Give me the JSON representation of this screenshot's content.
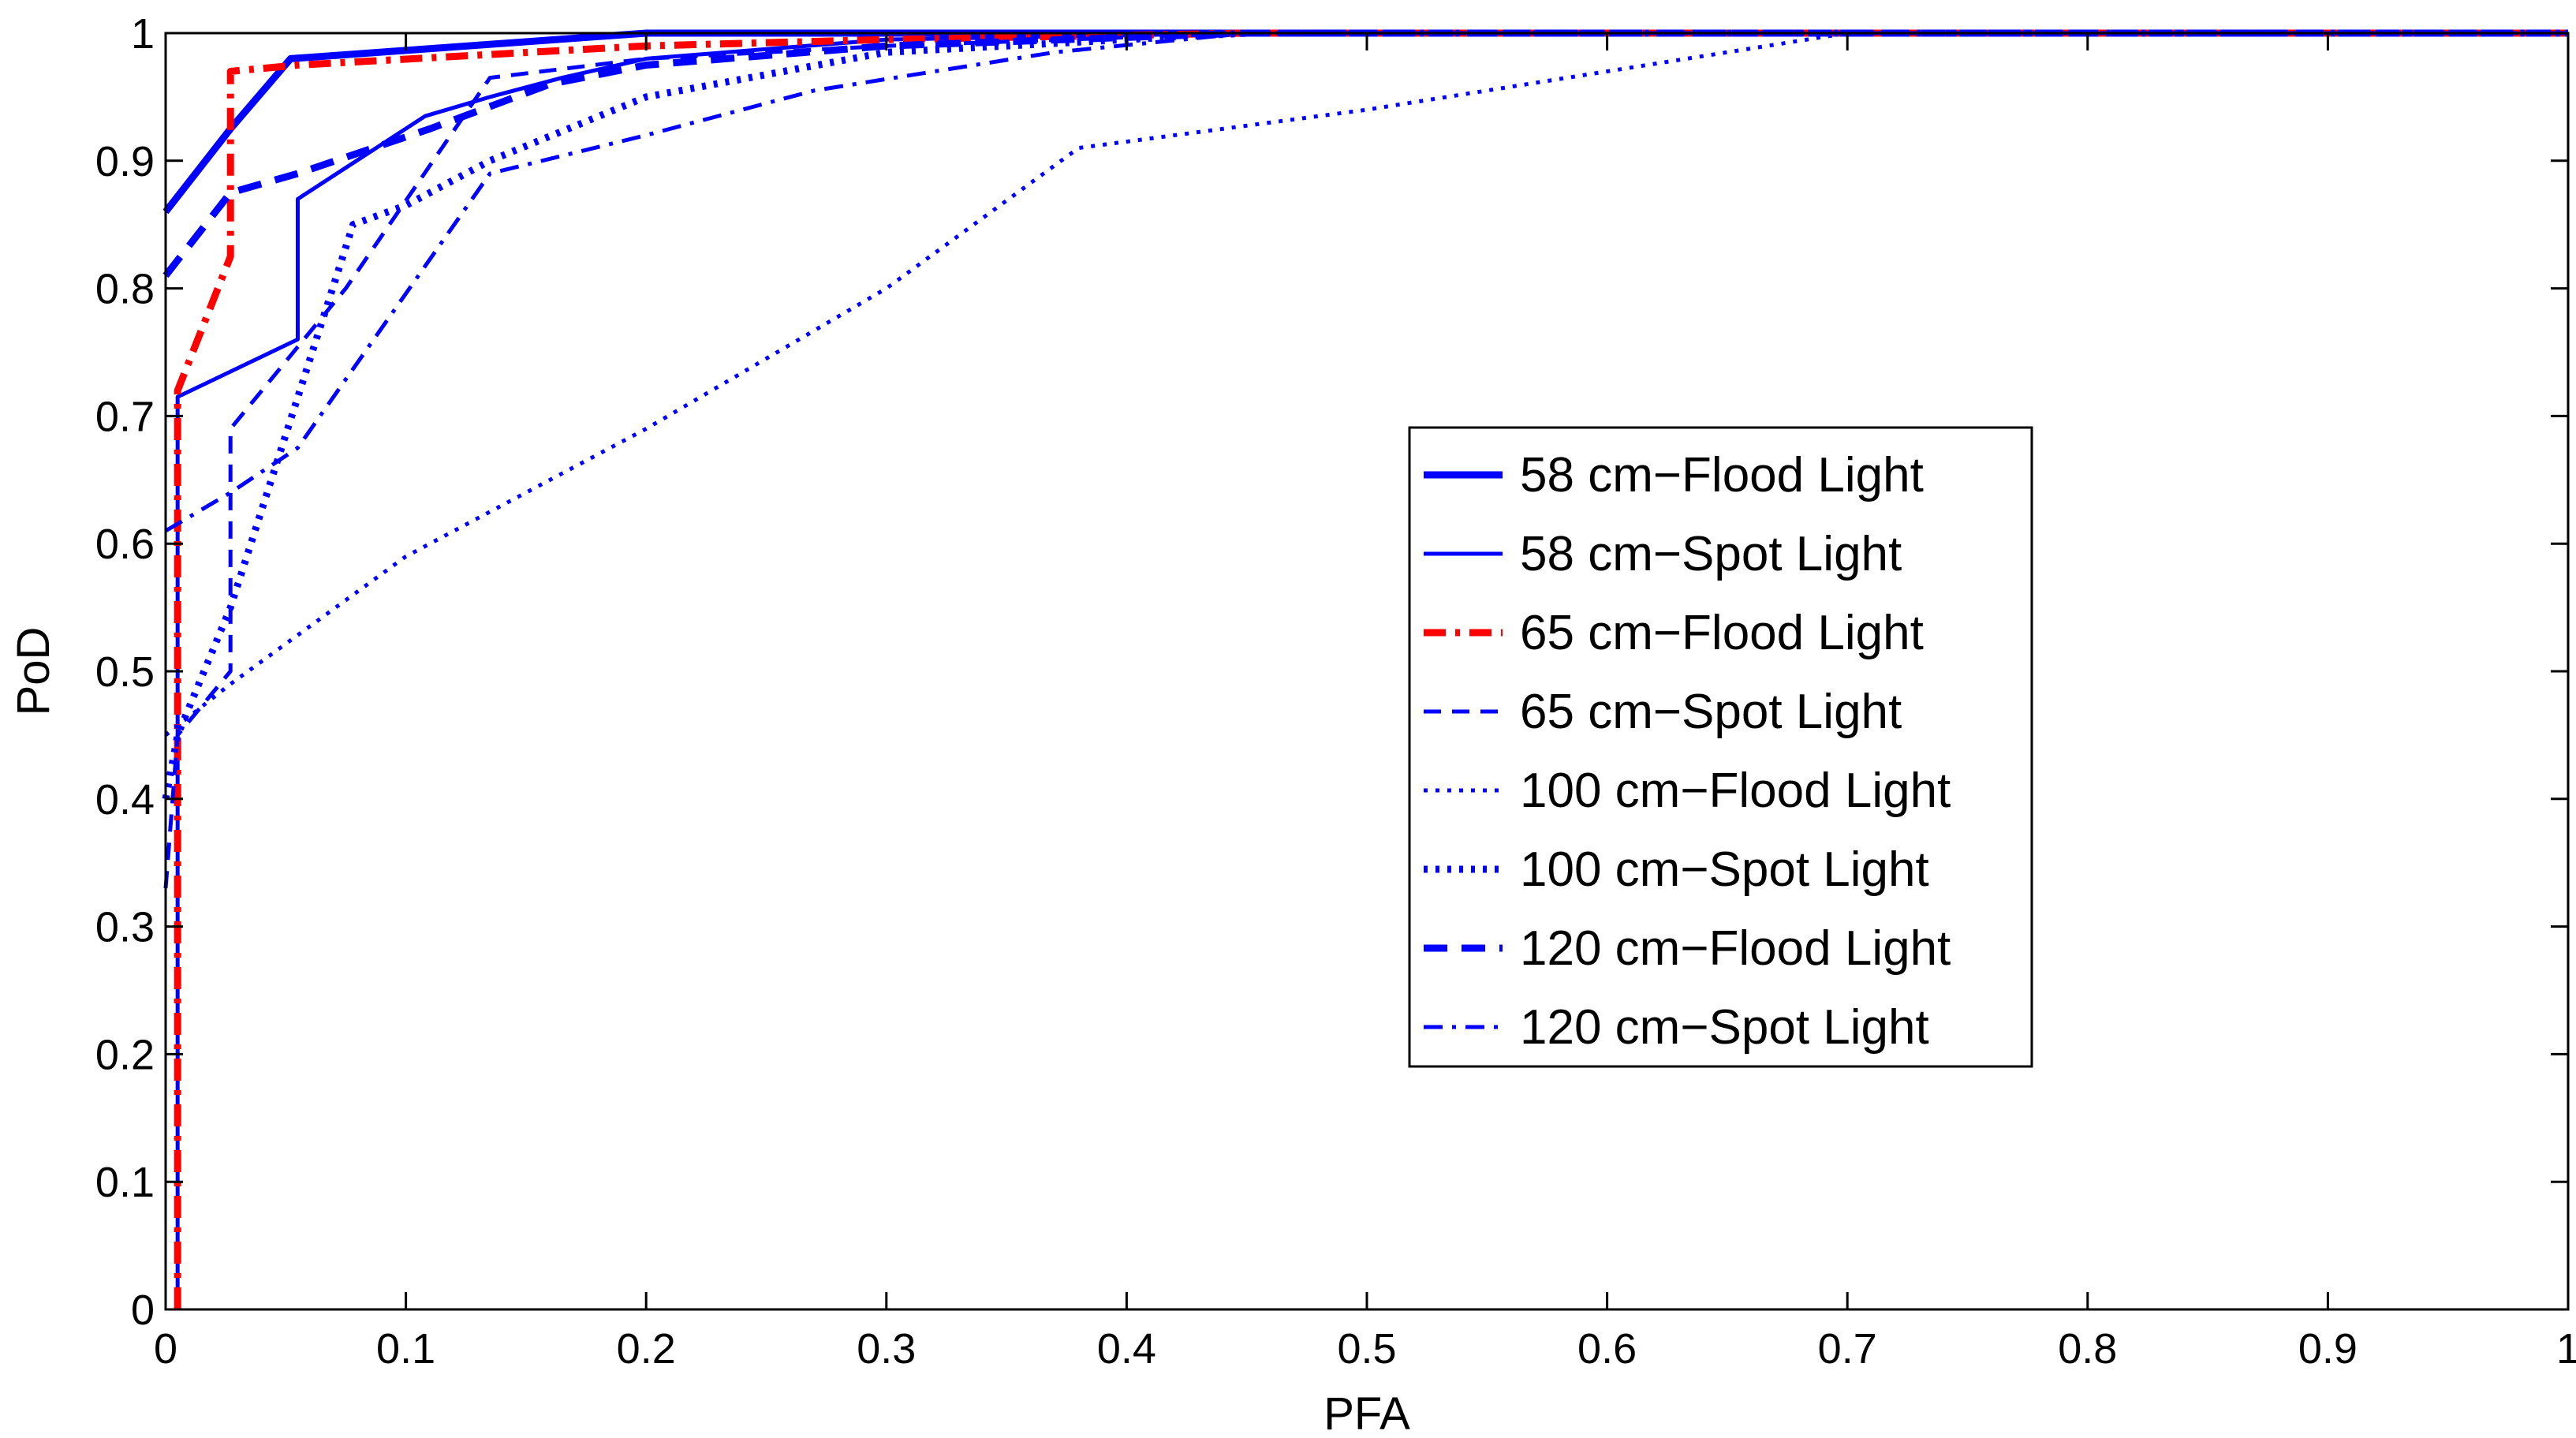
{
  "chart_data": {
    "type": "line",
    "title": "",
    "xlabel": "PFA",
    "ylabel": "PoD",
    "xlim": [
      0,
      1
    ],
    "ylim": [
      0,
      1
    ],
    "grid": false,
    "legend_position": "center-right",
    "x_ticks": [
      0,
      0.1,
      0.2,
      0.3,
      0.4,
      0.5,
      0.6,
      0.7,
      0.8,
      0.9,
      1
    ],
    "y_ticks": [
      0,
      0.1,
      0.2,
      0.3,
      0.4,
      0.5,
      0.6,
      0.7,
      0.8,
      0.9,
      1
    ],
    "x_tick_labels": [
      "0",
      "0.1",
      "0.2",
      "0.3",
      "0.4",
      "0.5",
      "0.6",
      "0.7",
      "0.8",
      "0.9",
      "1"
    ],
    "y_tick_labels": [
      "0",
      "0.1",
      "0.2",
      "0.3",
      "0.4",
      "0.5",
      "0.6",
      "0.7",
      "0.8",
      "0.9",
      "1"
    ],
    "series": [
      {
        "name": "58 cm−Flood Light",
        "color": "#0000ff",
        "style": "solid",
        "weight": "thick",
        "x": [
          0,
          0.027,
          0.052,
          0.2,
          0.45,
          1
        ],
        "y": [
          0.86,
          0.925,
          0.98,
          1.0,
          1.0,
          1.0
        ]
      },
      {
        "name": "58 cm−Spot Light",
        "color": "#0000ff",
        "style": "solid",
        "weight": "thin",
        "x": [
          0.005,
          0.005,
          0.055,
          0.055,
          0.108,
          0.135,
          0.165,
          0.2,
          0.3,
          0.45,
          1
        ],
        "y": [
          0,
          0.715,
          0.76,
          0.87,
          0.935,
          0.95,
          0.965,
          0.98,
          0.995,
          1.0,
          1.0
        ]
      },
      {
        "name": "65 cm−Flood Light",
        "color": "#ff0000",
        "style": "dashdot",
        "weight": "thick",
        "x": [
          0.005,
          0.005,
          0.027,
          0.027,
          0.055,
          0.2,
          0.3,
          0.45,
          1
        ],
        "y": [
          0,
          0.72,
          0.825,
          0.97,
          0.975,
          0.99,
          0.995,
          1.0,
          1.0
        ]
      },
      {
        "name": "65 cm−Spot Light",
        "color": "#0000ff",
        "style": "dashed",
        "weight": "thin",
        "x": [
          0,
          0.005,
          0.027,
          0.027,
          0.075,
          0.135,
          0.2,
          0.3,
          0.45,
          1
        ],
        "y": [
          0.33,
          0.45,
          0.5,
          0.69,
          0.8,
          0.965,
          0.98,
          0.99,
          1.0,
          1.0
        ]
      },
      {
        "name": "100 cm−Flood Light",
        "color": "#0000ff",
        "style": "dotted",
        "weight": "thin",
        "x": [
          0,
          0.027,
          0.1,
          0.2,
          0.3,
          0.38,
          0.5,
          0.6,
          0.7,
          1
        ],
        "y": [
          0.45,
          0.49,
          0.59,
          0.69,
          0.8,
          0.91,
          0.94,
          0.97,
          1.0,
          1.0
        ]
      },
      {
        "name": "100 cm−Spot Light",
        "color": "#0000ff",
        "style": "dotted",
        "weight": "thick",
        "x": [
          0,
          0.005,
          0.027,
          0.078,
          0.1,
          0.135,
          0.2,
          0.3,
          0.45,
          1
        ],
        "y": [
          0.4,
          0.45,
          0.55,
          0.85,
          0.865,
          0.9,
          0.95,
          0.985,
          1.0,
          1.0
        ]
      },
      {
        "name": "120 cm−Flood Light",
        "color": "#0000ff",
        "style": "dashed",
        "weight": "thick",
        "x": [
          0,
          0.027,
          0.055,
          0.11,
          0.16,
          0.2,
          0.3,
          0.45,
          1
        ],
        "y": [
          0.81,
          0.875,
          0.89,
          0.925,
          0.96,
          0.975,
          0.99,
          1.0,
          1.0
        ]
      },
      {
        "name": "120 cm−Spot Light",
        "color": "#0000ff",
        "style": "dashdot",
        "weight": "thin",
        "x": [
          0,
          0.027,
          0.055,
          0.135,
          0.2,
          0.27,
          0.37,
          0.45,
          1
        ],
        "y": [
          0.61,
          0.64,
          0.675,
          0.89,
          0.92,
          0.955,
          0.985,
          1.0,
          1.0
        ]
      }
    ]
  }
}
